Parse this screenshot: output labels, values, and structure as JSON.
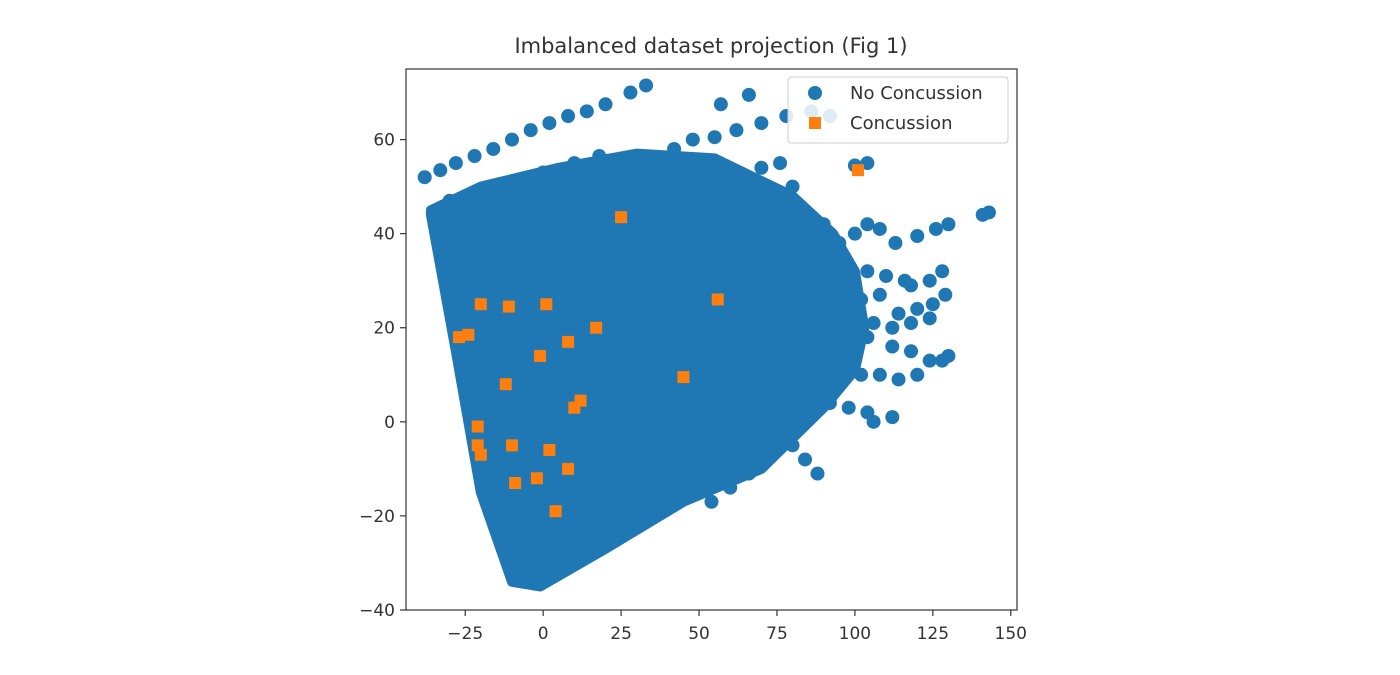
{
  "chart_data": {
    "type": "scatter",
    "title": "Imbalanced dataset projection (Fig 1)",
    "xlabel": "",
    "ylabel": "",
    "xlim": [
      -44,
      152
    ],
    "ylim": [
      -40,
      75
    ],
    "x_ticks": [
      -25,
      0,
      25,
      50,
      75,
      100,
      125,
      150
    ],
    "y_ticks": [
      -40,
      -20,
      0,
      20,
      40,
      60
    ],
    "grid": false,
    "legend_position": "top-right",
    "series": [
      {
        "name": "No Concussion",
        "marker": "circle",
        "color": "#1f77b4",
        "dense_region": [
          [
            -36,
            45
          ],
          [
            -36,
            44
          ],
          [
            -28,
            15
          ],
          [
            -20,
            -15
          ],
          [
            -10,
            -34
          ],
          [
            -1,
            -35
          ],
          [
            20,
            -27
          ],
          [
            45,
            -17
          ],
          [
            70,
            -10
          ],
          [
            90,
            3
          ],
          [
            100,
            11
          ],
          [
            103,
            20
          ],
          [
            100,
            32
          ],
          [
            93,
            40
          ],
          [
            80,
            48
          ],
          [
            55,
            56
          ],
          [
            30,
            57
          ],
          [
            5,
            54
          ],
          [
            -20,
            50
          ]
        ],
        "points": [
          [
            -38,
            52
          ],
          [
            -33,
            53.5
          ],
          [
            -28,
            55
          ],
          [
            -22,
            56.5
          ],
          [
            -16,
            58
          ],
          [
            -10,
            60
          ],
          [
            -4,
            62
          ],
          [
            2,
            63.5
          ],
          [
            8,
            65
          ],
          [
            14,
            66
          ],
          [
            20,
            67.5
          ],
          [
            28,
            70
          ],
          [
            33,
            71.5
          ],
          [
            -30,
            47
          ],
          [
            -20,
            49
          ],
          [
            -10,
            51
          ],
          [
            0,
            53
          ],
          [
            10,
            55
          ],
          [
            18,
            56.5
          ],
          [
            22,
            53
          ],
          [
            28,
            54.5
          ],
          [
            34,
            56
          ],
          [
            42,
            58
          ],
          [
            48,
            60
          ],
          [
            55,
            60.5
          ],
          [
            62,
            62
          ],
          [
            70,
            63.5
          ],
          [
            78,
            65
          ],
          [
            86,
            66
          ],
          [
            92,
            65
          ],
          [
            57,
            67.5
          ],
          [
            66,
            69.5
          ],
          [
            100,
            54.5
          ],
          [
            104,
            55
          ],
          [
            30,
            43
          ],
          [
            38,
            45
          ],
          [
            46,
            47
          ],
          [
            54,
            49
          ],
          [
            62,
            52
          ],
          [
            70,
            54
          ],
          [
            76,
            55
          ],
          [
            45,
            40
          ],
          [
            52,
            42
          ],
          [
            60,
            44
          ],
          [
            68,
            46
          ],
          [
            74,
            48
          ],
          [
            80,
            50
          ],
          [
            60,
            35
          ],
          [
            68,
            37
          ],
          [
            76,
            39
          ],
          [
            84,
            41
          ],
          [
            90,
            42
          ],
          [
            95,
            38
          ],
          [
            100,
            40
          ],
          [
            104,
            42
          ],
          [
            108,
            41
          ],
          [
            113,
            38
          ],
          [
            120,
            39.5
          ],
          [
            126,
            41
          ],
          [
            130,
            42
          ],
          [
            141,
            44
          ],
          [
            143,
            44.5
          ],
          [
            72,
            30
          ],
          [
            80,
            32
          ],
          [
            88,
            34
          ],
          [
            96,
            33
          ],
          [
            104,
            32
          ],
          [
            110,
            31
          ],
          [
            116,
            30
          ],
          [
            118,
            29
          ],
          [
            124,
            30
          ],
          [
            128,
            32
          ],
          [
            70,
            25
          ],
          [
            78,
            27
          ],
          [
            86,
            28
          ],
          [
            94,
            27
          ],
          [
            102,
            26
          ],
          [
            108,
            27
          ],
          [
            114,
            23
          ],
          [
            120,
            24
          ],
          [
            125,
            25
          ],
          [
            129,
            27
          ],
          [
            75,
            20
          ],
          [
            82,
            21
          ],
          [
            90,
            22
          ],
          [
            98,
            22
          ],
          [
            106,
            21
          ],
          [
            112,
            20
          ],
          [
            118,
            21
          ],
          [
            124,
            22
          ],
          [
            80,
            15
          ],
          [
            88,
            16
          ],
          [
            96,
            17
          ],
          [
            104,
            18
          ],
          [
            112,
            16
          ],
          [
            118,
            15
          ],
          [
            124,
            13
          ],
          [
            130,
            14
          ],
          [
            78,
            10
          ],
          [
            86,
            11
          ],
          [
            94,
            11
          ],
          [
            102,
            10
          ],
          [
            108,
            10
          ],
          [
            114,
            9
          ],
          [
            120,
            10
          ],
          [
            128,
            13
          ],
          [
            80,
            5
          ],
          [
            86,
            6
          ],
          [
            92,
            4
          ],
          [
            98,
            3
          ],
          [
            104,
            2
          ],
          [
            106,
            0
          ],
          [
            112,
            1
          ],
          [
            75,
            -2
          ],
          [
            80,
            -5
          ],
          [
            84,
            -8
          ],
          [
            88,
            -11
          ],
          [
            72,
            -7
          ],
          [
            66,
            -11
          ],
          [
            60,
            -14
          ],
          [
            54,
            -17
          ]
        ]
      },
      {
        "name": "Concussion",
        "marker": "square",
        "color": "#ff7f0e",
        "points": [
          [
            -27,
            18
          ],
          [
            -24,
            18.5
          ],
          [
            -20,
            25
          ],
          [
            -11,
            24.5
          ],
          [
            1,
            25
          ],
          [
            -1,
            14
          ],
          [
            8,
            17
          ],
          [
            17,
            20
          ],
          [
            -12,
            8
          ],
          [
            10,
            3
          ],
          [
            12,
            4.5
          ],
          [
            45,
            9.5
          ],
          [
            56,
            26
          ],
          [
            25,
            43.5
          ],
          [
            101,
            53.5
          ],
          [
            -21,
            -1
          ],
          [
            -21,
            -5
          ],
          [
            -20,
            -7
          ],
          [
            -10,
            -5
          ],
          [
            2,
            -6
          ],
          [
            8,
            -10
          ],
          [
            -2,
            -12
          ],
          [
            -9,
            -13
          ],
          [
            4,
            -19
          ]
        ]
      }
    ]
  }
}
